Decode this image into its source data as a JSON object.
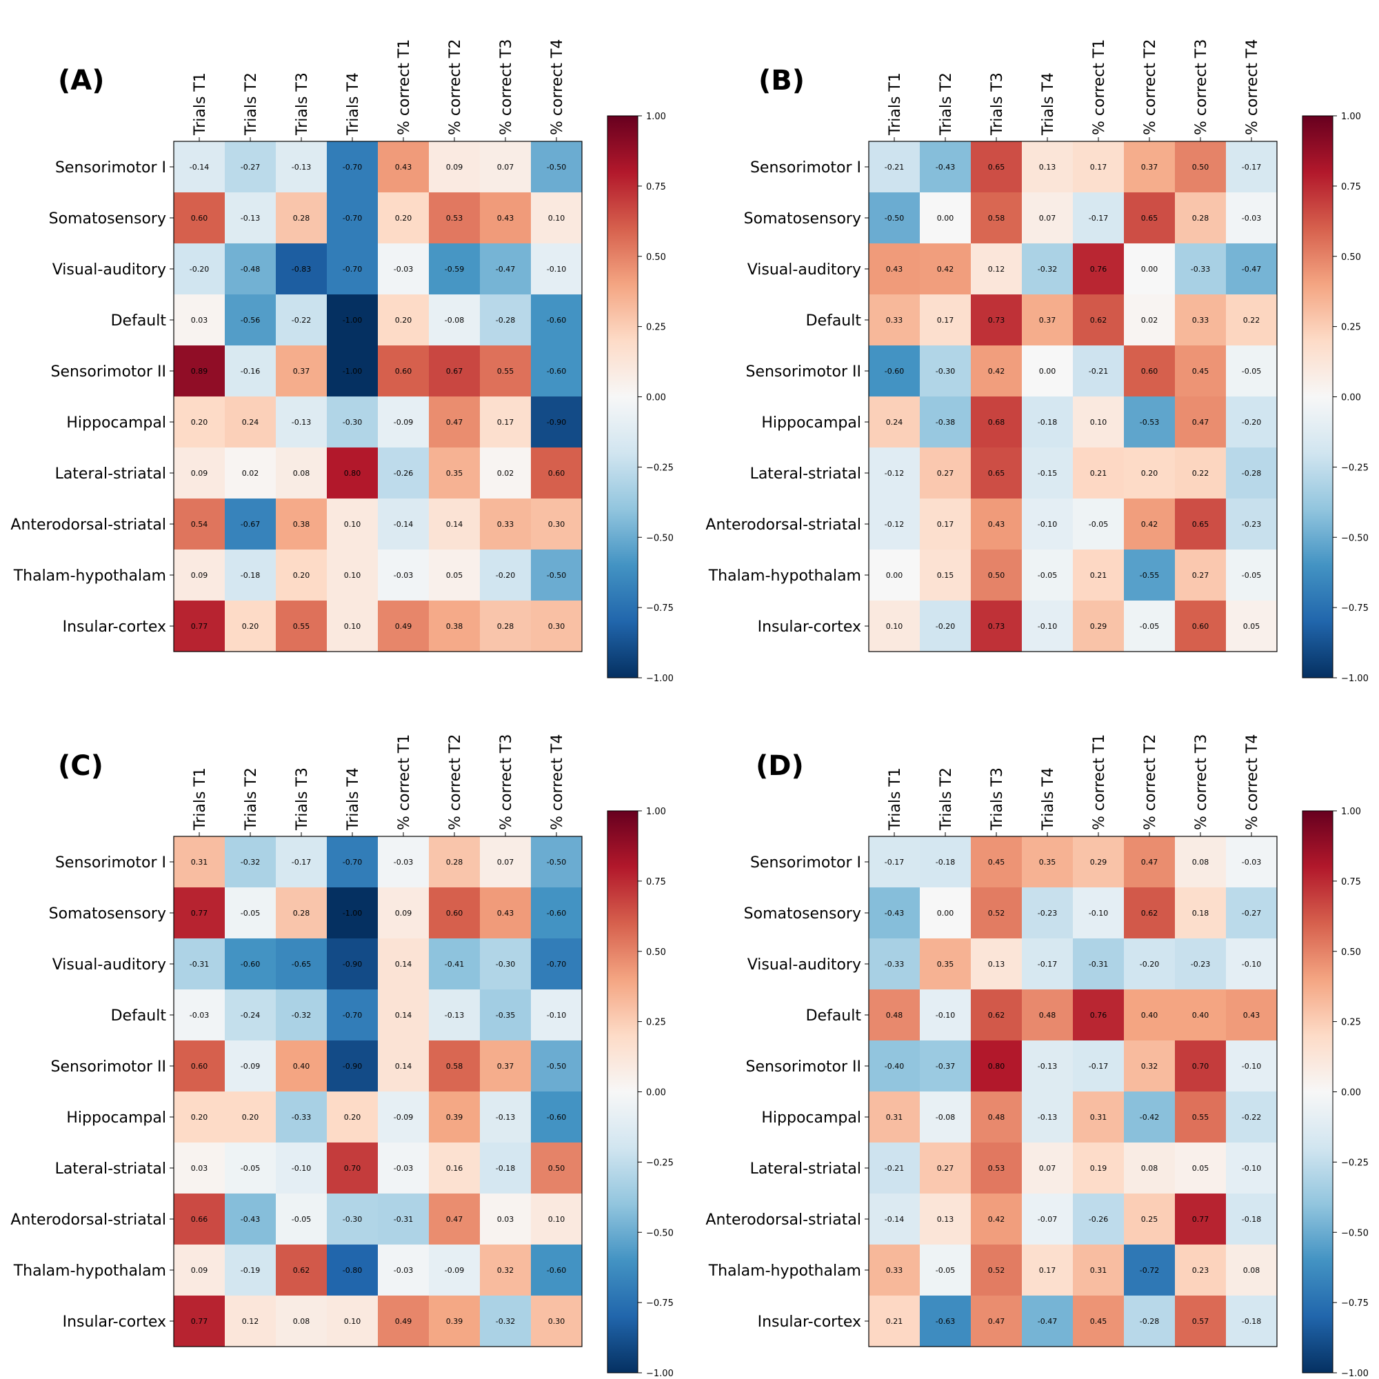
{
  "chart_data": [
    {
      "type": "heatmap",
      "panel_label": "(A)",
      "rows": [
        "Sensorimotor I",
        "Somatosensory",
        "Visual-auditory",
        "Default",
        "Sensorimotor II",
        "Hippocampal",
        "Lateral-striatal",
        "Anterodorsal-striatal",
        "Thalam-hypothalam",
        "Insular-cortex"
      ],
      "columns": [
        "Trials T1",
        "Trials T2",
        "Trials T3",
        "Trials T4",
        "% correct T1",
        "% correct T2",
        "% correct T3",
        "% correct T4"
      ],
      "values": [
        [
          -0.14,
          -0.27,
          -0.13,
          -0.7,
          0.43,
          0.09,
          0.07,
          -0.5
        ],
        [
          0.6,
          -0.13,
          0.28,
          -0.7,
          0.2,
          0.53,
          0.43,
          0.1
        ],
        [
          -0.2,
          -0.48,
          -0.83,
          -0.7,
          -0.03,
          -0.59,
          -0.47,
          -0.1
        ],
        [
          0.03,
          -0.56,
          -0.22,
          -1.0,
          0.2,
          -0.08,
          -0.28,
          -0.6
        ],
        [
          0.89,
          -0.16,
          0.37,
          -1.0,
          0.6,
          0.67,
          0.55,
          -0.6
        ],
        [
          0.2,
          0.24,
          -0.13,
          -0.3,
          -0.09,
          0.47,
          0.17,
          -0.9
        ],
        [
          0.09,
          0.02,
          0.08,
          0.8,
          -0.26,
          0.35,
          0.02,
          0.6
        ],
        [
          0.54,
          -0.67,
          0.38,
          0.1,
          -0.14,
          0.14,
          0.33,
          0.3
        ],
        [
          0.09,
          -0.18,
          0.2,
          0.1,
          -0.03,
          0.05,
          -0.2,
          -0.5
        ],
        [
          0.77,
          0.2,
          0.55,
          0.1,
          0.49,
          0.38,
          0.28,
          0.3
        ]
      ],
      "value_labels": [
        [
          "-0.14",
          "-0.27",
          "-0.13",
          "-0.70",
          "0.43",
          "0.09",
          "0.07",
          "-0.50"
        ],
        [
          "0.60",
          "-0.13",
          "0.28",
          "-0.70",
          "0.20",
          "0.53",
          "0.43",
          "0.10"
        ],
        [
          "-0.20",
          "-0.48",
          "-0.83",
          "-0.70",
          "-0.03",
          "-0.59",
          "-0.47",
          "-0.10"
        ],
        [
          "0.03",
          "-0.56",
          "-0.22",
          "-1.00",
          "0.20",
          "-0.08",
          "-0.28",
          "-0.60"
        ],
        [
          "0.89",
          "-0.16",
          "0.37",
          "-1.00",
          "0.60",
          "0.67",
          "0.55",
          "-0.60"
        ],
        [
          "0.20",
          "0.24",
          "-0.13",
          "-0.30",
          "-0.09",
          "0.47",
          "0.17",
          "-0.90"
        ],
        [
          "0.09",
          "0.02",
          "0.08",
          "0.80",
          "-0.26",
          "0.35",
          "0.02",
          "0.60"
        ],
        [
          "0.54",
          "-0.67",
          "0.38",
          "0.10",
          "-0.14",
          "0.14",
          "0.33",
          "0.30"
        ],
        [
          "0.09",
          "-0.18",
          "0.20",
          "0.10",
          "-0.03",
          "0.05",
          "-0.20",
          "-0.50"
        ],
        [
          "0.77",
          "0.20",
          "0.55",
          "0.10",
          "0.49",
          "0.38",
          "0.28",
          "0.30"
        ]
      ],
      "colorbar": {
        "range": [
          -1.0,
          1.0
        ],
        "ticks": [
          1.0,
          0.75,
          0.5,
          0.25,
          0.0,
          -0.25,
          -0.5,
          -0.75,
          -1.0
        ],
        "tick_labels": [
          "1.00",
          "0.75",
          "0.50",
          "0.25",
          "0.00",
          "−0.25",
          "−0.50",
          "−0.75",
          "−1.00"
        ],
        "colormap": "RdBu_r"
      }
    },
    {
      "type": "heatmap",
      "panel_label": "(B)",
      "rows": [
        "Sensorimotor I",
        "Somatosensory",
        "Visual-auditory",
        "Default",
        "Sensorimotor II",
        "Hippocampal",
        "Lateral-striatal",
        "Anterodorsal-striatal",
        "Thalam-hypothalam",
        "Insular-cortex"
      ],
      "columns": [
        "Trials T1",
        "Trials T2",
        "Trials T3",
        "Trials T4",
        "% correct T1",
        "% correct T2",
        "% correct T3",
        "% correct T4"
      ],
      "values": [
        [
          -0.21,
          -0.43,
          0.65,
          0.13,
          0.17,
          0.37,
          0.5,
          -0.17
        ],
        [
          -0.5,
          0.0,
          0.58,
          0.07,
          -0.17,
          0.65,
          0.28,
          -0.03
        ],
        [
          0.43,
          0.42,
          0.12,
          -0.32,
          0.76,
          0.0,
          -0.33,
          -0.47
        ],
        [
          0.33,
          0.17,
          0.73,
          0.37,
          0.62,
          0.02,
          0.33,
          0.22
        ],
        [
          -0.6,
          -0.3,
          0.42,
          0.0,
          -0.21,
          0.6,
          0.45,
          -0.05
        ],
        [
          0.24,
          -0.38,
          0.68,
          -0.18,
          0.1,
          -0.53,
          0.47,
          -0.2
        ],
        [
          -0.12,
          0.27,
          0.65,
          -0.15,
          0.21,
          0.2,
          0.22,
          -0.28
        ],
        [
          -0.12,
          0.17,
          0.43,
          -0.1,
          -0.05,
          0.42,
          0.65,
          -0.23
        ],
        [
          0.0,
          0.15,
          0.5,
          -0.05,
          0.21,
          -0.55,
          0.27,
          -0.05
        ],
        [
          0.1,
          -0.2,
          0.73,
          -0.1,
          0.29,
          -0.05,
          0.6,
          0.05
        ]
      ],
      "value_labels": [
        [
          "-0.21",
          "-0.43",
          "0.65",
          "0.13",
          "0.17",
          "0.37",
          "0.50",
          "-0.17"
        ],
        [
          "-0.50",
          "0.00",
          "0.58",
          "0.07",
          "-0.17",
          "0.65",
          "0.28",
          "-0.03"
        ],
        [
          "0.43",
          "0.42",
          "0.12",
          "-0.32",
          "0.76",
          "0.00",
          "-0.33",
          "-0.47"
        ],
        [
          "0.33",
          "0.17",
          "0.73",
          "0.37",
          "0.62",
          "0.02",
          "0.33",
          "0.22"
        ],
        [
          "-0.60",
          "-0.30",
          "0.42",
          "0.00",
          "-0.21",
          "0.60",
          "0.45",
          "-0.05"
        ],
        [
          "0.24",
          "-0.38",
          "0.68",
          "-0.18",
          "0.10",
          "-0.53",
          "0.47",
          "-0.20"
        ],
        [
          "-0.12",
          "0.27",
          "0.65",
          "-0.15",
          "0.21",
          "0.20",
          "0.22",
          "-0.28"
        ],
        [
          "-0.12",
          "0.17",
          "0.43",
          "-0.10",
          "-0.05",
          "0.42",
          "0.65",
          "-0.23"
        ],
        [
          "0.00",
          "0.15",
          "0.50",
          "-0.05",
          "0.21",
          "-0.55",
          "0.27",
          "-0.05"
        ],
        [
          "0.10",
          "-0.20",
          "0.73",
          "-0.10",
          "0.29",
          "-0.05",
          "0.60",
          "0.05"
        ]
      ],
      "colorbar": {
        "range": [
          -1.0,
          1.0
        ],
        "ticks": [
          1.0,
          0.75,
          0.5,
          0.25,
          0.0,
          -0.25,
          -0.5,
          -0.75,
          -1.0
        ],
        "tick_labels": [
          "1.00",
          "0.75",
          "0.50",
          "0.25",
          "0.00",
          "−0.25",
          "−0.50",
          "−0.75",
          "−1.00"
        ],
        "colormap": "RdBu_r"
      }
    },
    {
      "type": "heatmap",
      "panel_label": "(C)",
      "rows": [
        "Sensorimotor I",
        "Somatosensory",
        "Visual-auditory",
        "Default",
        "Sensorimotor II",
        "Hippocampal",
        "Lateral-striatal",
        "Anterodorsal-striatal",
        "Thalam-hypothalam",
        "Insular-cortex"
      ],
      "columns": [
        "Trials T1",
        "Trials T2",
        "Trials T3",
        "Trials T4",
        "% correct T1",
        "% correct T2",
        "% correct T3",
        "% correct T4"
      ],
      "values": [
        [
          0.31,
          -0.32,
          -0.17,
          -0.7,
          -0.03,
          0.28,
          0.07,
          -0.5
        ],
        [
          0.77,
          -0.05,
          0.28,
          -1.0,
          0.09,
          0.6,
          0.43,
          -0.6
        ],
        [
          -0.31,
          -0.6,
          -0.65,
          -0.9,
          0.14,
          -0.41,
          -0.3,
          -0.7
        ],
        [
          -0.03,
          -0.24,
          -0.32,
          -0.7,
          0.14,
          -0.13,
          -0.35,
          -0.1
        ],
        [
          0.6,
          -0.09,
          0.4,
          -0.9,
          0.14,
          0.58,
          0.37,
          -0.5
        ],
        [
          0.2,
          0.2,
          -0.33,
          0.2,
          -0.09,
          0.39,
          -0.13,
          -0.6
        ],
        [
          0.03,
          -0.05,
          -0.1,
          0.7,
          -0.03,
          0.16,
          -0.18,
          0.5
        ],
        [
          0.66,
          -0.43,
          -0.05,
          -0.3,
          -0.31,
          0.47,
          0.03,
          0.1
        ],
        [
          0.09,
          -0.19,
          0.62,
          -0.8,
          -0.03,
          -0.09,
          0.32,
          -0.6
        ],
        [
          0.77,
          0.12,
          0.08,
          0.1,
          0.49,
          0.39,
          -0.32,
          0.3
        ]
      ],
      "value_labels": [
        [
          "0.31",
          "-0.32",
          "-0.17",
          "-0.70",
          "-0.03",
          "0.28",
          "0.07",
          "-0.50"
        ],
        [
          "0.77",
          "-0.05",
          "0.28",
          "-1.00",
          "0.09",
          "0.60",
          "0.43",
          "-0.60"
        ],
        [
          "-0.31",
          "-0.60",
          "-0.65",
          "-0.90",
          "0.14",
          "-0.41",
          "-0.30",
          "-0.70"
        ],
        [
          "-0.03",
          "-0.24",
          "-0.32",
          "-0.70",
          "0.14",
          "-0.13",
          "-0.35",
          "-0.10"
        ],
        [
          "0.60",
          "-0.09",
          "0.40",
          "-0.90",
          "0.14",
          "0.58",
          "0.37",
          "-0.50"
        ],
        [
          "0.20",
          "0.20",
          "-0.33",
          "0.20",
          "-0.09",
          "0.39",
          "-0.13",
          "-0.60"
        ],
        [
          "0.03",
          "-0.05",
          "-0.10",
          "0.70",
          "-0.03",
          "0.16",
          "-0.18",
          "0.50"
        ],
        [
          "0.66",
          "-0.43",
          "-0.05",
          "-0.30",
          "-0.31",
          "0.47",
          "0.03",
          "0.10"
        ],
        [
          "0.09",
          "-0.19",
          "0.62",
          "-0.80",
          "-0.03",
          "-0.09",
          "0.32",
          "-0.60"
        ],
        [
          "0.77",
          "0.12",
          "0.08",
          "0.10",
          "0.49",
          "0.39",
          "-0.32",
          "0.30"
        ]
      ],
      "colorbar": {
        "range": [
          -1.0,
          1.0
        ],
        "ticks": [
          1.0,
          0.75,
          0.5,
          0.25,
          0.0,
          -0.25,
          -0.5,
          -0.75,
          -1.0
        ],
        "tick_labels": [
          "1.00",
          "0.75",
          "0.50",
          "0.25",
          "0.00",
          "−0.25",
          "−0.50",
          "−0.75",
          "−1.00"
        ],
        "colormap": "RdBu_r"
      }
    },
    {
      "type": "heatmap",
      "panel_label": "(D)",
      "rows": [
        "Sensorimotor I",
        "Somatosensory",
        "Visual-auditory",
        "Default",
        "Sensorimotor II",
        "Hippocampal",
        "Lateral-striatal",
        "Anterodorsal-striatal",
        "Thalam-hypothalam",
        "Insular-cortex"
      ],
      "columns": [
        "Trials T1",
        "Trials T2",
        "Trials T3",
        "Trials T4",
        "% correct T1",
        "% correct T2",
        "% correct T3",
        "% correct T4"
      ],
      "values": [
        [
          -0.17,
          -0.18,
          0.45,
          0.35,
          0.29,
          0.47,
          0.08,
          -0.03
        ],
        [
          -0.43,
          0.0,
          0.52,
          -0.23,
          -0.1,
          0.62,
          0.18,
          -0.27
        ],
        [
          -0.33,
          0.35,
          0.13,
          -0.17,
          -0.31,
          -0.2,
          -0.23,
          -0.1
        ],
        [
          0.48,
          -0.1,
          0.62,
          0.48,
          0.76,
          0.4,
          0.4,
          0.43
        ],
        [
          -0.4,
          -0.37,
          0.8,
          -0.13,
          -0.17,
          0.32,
          0.7,
          -0.1
        ],
        [
          0.31,
          -0.08,
          0.48,
          -0.13,
          0.31,
          -0.42,
          0.55,
          -0.22
        ],
        [
          -0.21,
          0.27,
          0.53,
          0.07,
          0.19,
          0.08,
          0.05,
          -0.1
        ],
        [
          -0.14,
          0.13,
          0.42,
          -0.07,
          -0.26,
          0.25,
          0.77,
          -0.18
        ],
        [
          0.33,
          -0.05,
          0.52,
          0.17,
          0.31,
          -0.72,
          0.23,
          0.08
        ],
        [
          0.21,
          -0.63,
          0.47,
          -0.47,
          0.45,
          -0.28,
          0.57,
          -0.18
        ]
      ],
      "value_labels": [
        [
          "-0.17",
          "-0.18",
          "0.45",
          "0.35",
          "0.29",
          "0.47",
          "0.08",
          "-0.03"
        ],
        [
          "-0.43",
          "0.00",
          "0.52",
          "-0.23",
          "-0.10",
          "0.62",
          "0.18",
          "-0.27"
        ],
        [
          "-0.33",
          "0.35",
          "0.13",
          "-0.17",
          "-0.31",
          "-0.20",
          "-0.23",
          "-0.10"
        ],
        [
          "0.48",
          "-0.10",
          "0.62",
          "0.48",
          "0.76",
          "0.40",
          "0.40",
          "0.43"
        ],
        [
          "-0.40",
          "-0.37",
          "0.80",
          "-0.13",
          "-0.17",
          "0.32",
          "0.70",
          "-0.10"
        ],
        [
          "0.31",
          "-0.08",
          "0.48",
          "-0.13",
          "0.31",
          "-0.42",
          "0.55",
          "-0.22"
        ],
        [
          "-0.21",
          "0.27",
          "0.53",
          "0.07",
          "0.19",
          "0.08",
          "0.05",
          "-0.10"
        ],
        [
          "-0.14",
          "0.13",
          "0.42",
          "-0.07",
          "-0.26",
          "0.25",
          "0.77",
          "-0.18"
        ],
        [
          "0.33",
          "-0.05",
          "0.52",
          "0.17",
          "0.31",
          "-0.72",
          "0.23",
          "0.08"
        ],
        [
          "0.21",
          "-0.63",
          "0.47",
          "-0.47",
          "0.45",
          "-0.28",
          "0.57",
          "-0.18"
        ]
      ],
      "colorbar": {
        "range": [
          -1.0,
          1.0
        ],
        "ticks": [
          1.0,
          0.75,
          0.5,
          0.25,
          0.0,
          -0.25,
          -0.5,
          -0.75,
          -1.0
        ],
        "tick_labels": [
          "1.00",
          "0.75",
          "0.50",
          "0.25",
          "0.00",
          "−0.25",
          "−0.50",
          "−0.75",
          "−1.00"
        ],
        "colormap": "RdBu_r"
      }
    }
  ]
}
